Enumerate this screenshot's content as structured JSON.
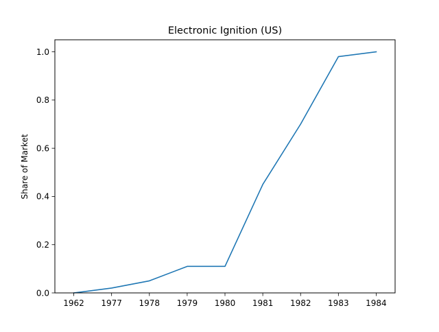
{
  "chart_data": {
    "type": "line",
    "title": "Electronic Ignition (US)",
    "xlabel": "",
    "ylabel": "Share of Market",
    "categories": [
      "1962",
      "1977",
      "1978",
      "1979",
      "1980",
      "1981",
      "1982",
      "1983",
      "1984"
    ],
    "series": [
      {
        "values": [
          0.0,
          0.02,
          0.05,
          0.11,
          0.11,
          0.45,
          0.7,
          0.98,
          1.0
        ],
        "color": "#1f77b4"
      }
    ],
    "ylim": [
      0,
      1.05
    ],
    "yticks": [
      "0.0",
      "0.2",
      "0.4",
      "0.6",
      "0.8",
      "1.0"
    ],
    "grid": false,
    "legend": "none"
  }
}
